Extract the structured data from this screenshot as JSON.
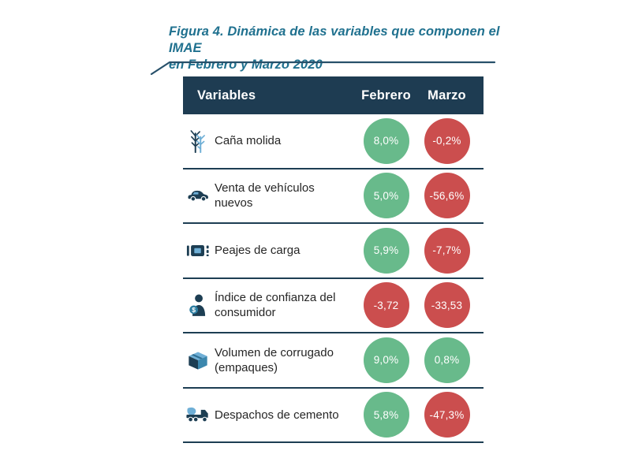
{
  "figure": {
    "title_line1": "Figura 4. Dinámica de las variables que componen el IMAE",
    "title_line2": "en Febrero y Marzo 2020"
  },
  "table": {
    "headers": {
      "variables": "Variables",
      "febrero": "Febrero",
      "marzo": "Marzo"
    },
    "rows": [
      {
        "icon": "sugarcane-icon",
        "label": "Caña molida",
        "febrero": {
          "value": "8,0%",
          "color": "positive"
        },
        "marzo": {
          "value": "-0,2%",
          "color": "negative"
        }
      },
      {
        "icon": "car-icon",
        "label": "Venta de vehículos nuevos",
        "febrero": {
          "value": "5,0%",
          "color": "positive"
        },
        "marzo": {
          "value": "-56,6%",
          "color": "negative"
        }
      },
      {
        "icon": "toll-icon",
        "label": "Peajes de carga",
        "febrero": {
          "value": "5,9%",
          "color": "positive"
        },
        "marzo": {
          "value": "-7,7%",
          "color": "negative"
        }
      },
      {
        "icon": "consumer-icon",
        "label": "Índice de confianza del consumidor",
        "febrero": {
          "value": "-3,72",
          "color": "negative"
        },
        "marzo": {
          "value": "-33,53",
          "color": "negative"
        }
      },
      {
        "icon": "box-icon",
        "label": "Volumen de corrugado (empaques)",
        "febrero": {
          "value": "9,0%",
          "color": "positive"
        },
        "marzo": {
          "value": "0,8%",
          "color": "positive"
        }
      },
      {
        "icon": "cement-truck-icon",
        "label": "Despachos de cemento",
        "febrero": {
          "value": "5,8%",
          "color": "positive"
        },
        "marzo": {
          "value": "-47,3%",
          "color": "negative"
        }
      }
    ]
  },
  "colors": {
    "positive": "#68ba8b",
    "negative": "#cb4e4e",
    "header_bg": "#1e3c52",
    "separator": "#1d3e53",
    "title_accent": "#20718f",
    "icon_navy": "#1d3e53",
    "icon_light_blue": "#6fafd6"
  },
  "chart_data": {
    "type": "table",
    "title": "Figura 4. Dinámica de las variables que componen el IMAE en Febrero y Marzo 2020",
    "categories": [
      "Caña molida",
      "Venta de vehículos nuevos",
      "Peajes de carga",
      "Índice de confianza del consumidor",
      "Volumen de corrugado (empaques)",
      "Despachos de cemento"
    ],
    "series": [
      {
        "name": "Febrero",
        "values": [
          8.0,
          5.0,
          5.9,
          -3.72,
          9.0,
          5.8
        ]
      },
      {
        "name": "Marzo",
        "values": [
          -0.2,
          -56.6,
          -7.7,
          -33.53,
          0.8,
          -47.3
        ]
      }
    ],
    "value_labels": [
      [
        "8,0%",
        "-0,2%"
      ],
      [
        "5,0%",
        "-56,6%"
      ],
      [
        "5,9%",
        "-7,7%"
      ],
      [
        "-3,72",
        "-33,53"
      ],
      [
        "9,0%",
        "0,8%"
      ],
      [
        "5,8%",
        "-47,3%"
      ]
    ],
    "color_encoding": {
      "positive": "green circle",
      "negative": "red circle"
    },
    "legend_position": "none"
  }
}
